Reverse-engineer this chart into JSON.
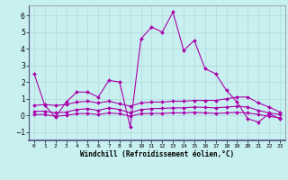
{
  "title": "",
  "xlabel": "Windchill (Refroidissement éolien,°C)",
  "ylabel": "",
  "bg_color": "#c8f0f0",
  "grid_color": "#b0d8d8",
  "line_color": "#aa00aa",
  "xlim": [
    -0.5,
    23.5
  ],
  "ylim": [
    -1.5,
    6.6
  ],
  "yticks": [
    -1,
    0,
    1,
    2,
    3,
    4,
    5,
    6
  ],
  "xticks": [
    0,
    1,
    2,
    3,
    4,
    5,
    6,
    7,
    8,
    9,
    10,
    11,
    12,
    13,
    14,
    15,
    16,
    17,
    18,
    19,
    20,
    21,
    22,
    23
  ],
  "line1": [
    2.5,
    0.6,
    -0.1,
    0.8,
    1.4,
    1.4,
    1.1,
    2.1,
    2.0,
    -0.7,
    4.6,
    5.3,
    5.0,
    6.2,
    3.9,
    4.5,
    2.8,
    2.5,
    1.5,
    0.8,
    -0.2,
    -0.4,
    0.1,
    -0.2
  ],
  "line2": [
    0.6,
    0.65,
    0.6,
    0.65,
    0.8,
    0.85,
    0.75,
    0.85,
    0.7,
    0.55,
    0.75,
    0.8,
    0.8,
    0.85,
    0.85,
    0.9,
    0.9,
    0.9,
    1.0,
    1.1,
    1.1,
    0.75,
    0.5,
    0.2
  ],
  "line3": [
    0.25,
    0.25,
    0.15,
    0.2,
    0.35,
    0.4,
    0.3,
    0.45,
    0.35,
    0.15,
    0.35,
    0.4,
    0.42,
    0.45,
    0.45,
    0.5,
    0.48,
    0.45,
    0.5,
    0.55,
    0.5,
    0.3,
    0.15,
    0.05
  ],
  "line4": [
    0.05,
    0.05,
    -0.05,
    0.0,
    0.1,
    0.12,
    0.05,
    0.15,
    0.1,
    -0.05,
    0.1,
    0.12,
    0.12,
    0.15,
    0.15,
    0.18,
    0.15,
    0.12,
    0.15,
    0.18,
    0.15,
    0.05,
    -0.05,
    -0.15
  ]
}
